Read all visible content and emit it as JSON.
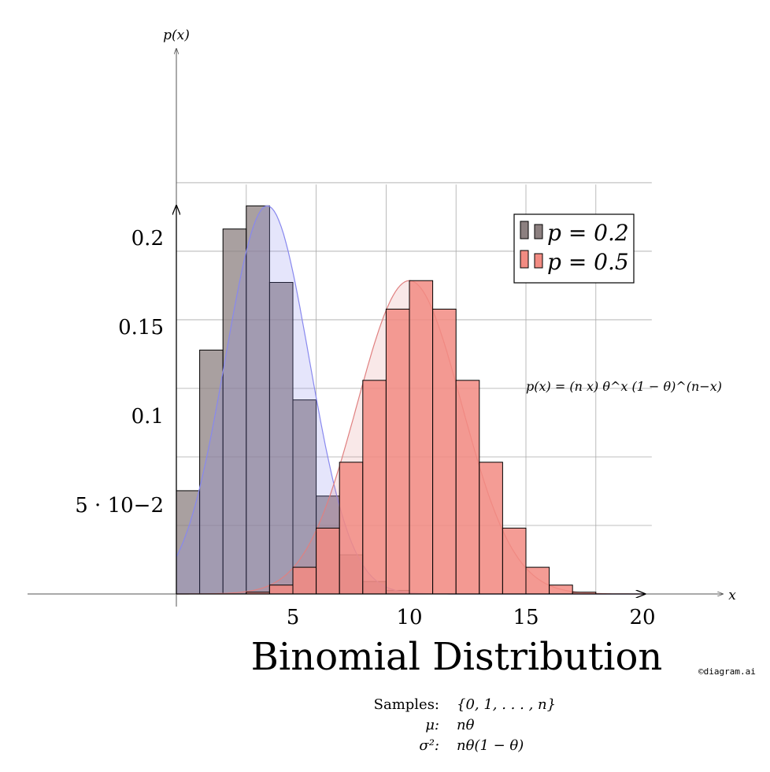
{
  "chart_data": {
    "type": "bar",
    "title": "Binomial Distribution",
    "xlabel": "x",
    "ylabel": "p(x)",
    "xlim": [
      -6.5,
      23.5
    ],
    "ylim": [
      0,
      0.23
    ],
    "x_ticks": [
      5,
      10,
      15,
      20
    ],
    "x_tick_labels": [
      "5",
      "10",
      "15",
      "20"
    ],
    "y_ticks": [
      0.05,
      0.1,
      0.15,
      0.2
    ],
    "y_tick_labels": [
      "5 · 10−2",
      "0.1",
      "0.15",
      "0.2"
    ],
    "grid": true,
    "legend_position": "top-right",
    "categories": [
      0,
      1,
      2,
      3,
      4,
      5,
      6,
      7,
      8,
      9,
      10,
      11,
      12,
      13,
      14,
      15,
      16,
      17,
      18,
      19,
      20
    ],
    "series": [
      {
        "name": "p = 0.2",
        "color": "#8c8080",
        "values": [
          0.058,
          0.137,
          0.205,
          0.218,
          0.175,
          0.109,
          0.055,
          0.022,
          0.007,
          0.002,
          0,
          0,
          0,
          0,
          0,
          0,
          0,
          0,
          0,
          0,
          0
        ]
      },
      {
        "name": "p = 0.5",
        "color": "#f28b82",
        "values": [
          0,
          0,
          0,
          0.001,
          0.005,
          0.015,
          0.037,
          0.074,
          0.12,
          0.16,
          0.176,
          0.16,
          0.12,
          0.074,
          0.037,
          0.015,
          0.005,
          0.001,
          0,
          0,
          0
        ]
      }
    ],
    "curves": [
      {
        "color": "#8888ee",
        "mean": 3.9,
        "sd": 1.8,
        "peak": 0.218
      },
      {
        "color": "#e08080",
        "mean": 10,
        "sd": 2.24,
        "peak": 0.176
      }
    ],
    "annotation": "p(x) = (n x) θ^x (1 − θ)^(n−x)"
  },
  "properties": {
    "samples_label": "Samples:",
    "samples_value": "{0, 1, . . . , n}",
    "mean_label": "μ:",
    "mean_value": "nθ",
    "variance_label": "σ²:",
    "variance_value": "nθ(1 − θ)"
  },
  "watermark": "©diagram.ai"
}
